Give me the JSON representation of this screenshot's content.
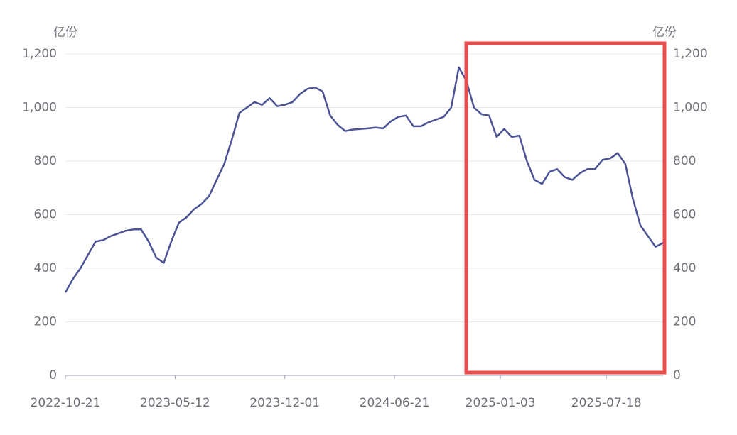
{
  "chart_data": {
    "type": "line",
    "y_label": "亿份",
    "y2_label": "亿份",
    "x": [
      "2022-10-21",
      "2022-11-04",
      "2022-11-18",
      "2022-12-02",
      "2022-12-16",
      "2022-12-30",
      "2023-01-13",
      "2023-01-27",
      "2023-02-10",
      "2023-02-24",
      "2023-03-10",
      "2023-03-24",
      "2023-04-07",
      "2023-04-21",
      "2023-05-05",
      "2023-05-19",
      "2023-06-02",
      "2023-06-16",
      "2023-06-30",
      "2023-07-14",
      "2023-07-28",
      "2023-08-11",
      "2023-08-25",
      "2023-09-08",
      "2023-09-22",
      "2023-10-06",
      "2023-10-20",
      "2023-11-03",
      "2023-11-17",
      "2023-12-01",
      "2023-12-15",
      "2023-12-29",
      "2024-01-12",
      "2024-01-26",
      "2024-02-09",
      "2024-02-23",
      "2024-03-08",
      "2024-03-22",
      "2024-04-05",
      "2024-04-19",
      "2024-05-03",
      "2024-05-17",
      "2024-05-31",
      "2024-06-14",
      "2024-06-28",
      "2024-07-12",
      "2024-07-26",
      "2024-08-09",
      "2024-08-23",
      "2024-09-06",
      "2024-09-20",
      "2024-10-04",
      "2024-10-18",
      "2024-11-01",
      "2024-11-15",
      "2024-11-29",
      "2024-12-13",
      "2024-12-27",
      "2025-01-10",
      "2025-01-24",
      "2025-02-07",
      "2025-02-21",
      "2025-03-07",
      "2025-03-21",
      "2025-04-04",
      "2025-04-18",
      "2025-05-02",
      "2025-05-16",
      "2025-05-30",
      "2025-06-13",
      "2025-06-27",
      "2025-07-11",
      "2025-07-25",
      "2025-08-08",
      "2025-08-22",
      "2025-09-05",
      "2025-09-19",
      "2025-10-03",
      "2025-10-17",
      "2025-10-31"
    ],
    "series": [
      {
        "color": "#4b5394",
        "values": [
          310,
          360,
          400,
          450,
          500,
          505,
          520,
          530,
          540,
          545,
          545,
          500,
          440,
          420,
          500,
          570,
          590,
          620,
          640,
          670,
          730,
          790,
          880,
          980,
          1000,
          1020,
          1010,
          1035,
          1005,
          1010,
          1020,
          1050,
          1070,
          1075,
          1060,
          970,
          935,
          912,
          918,
          920,
          922,
          925,
          922,
          948,
          965,
          970,
          930,
          930,
          945,
          955,
          965,
          1000,
          1150,
          1100,
          1000,
          975,
          970,
          890,
          920,
          890,
          895,
          800,
          730,
          715,
          760,
          770,
          740,
          730,
          755,
          770,
          770,
          805,
          810,
          830,
          790,
          660,
          560,
          520,
          480,
          495
        ]
      }
    ],
    "xlim": [
      "2022-10-21",
      "2025-10-31"
    ],
    "xticks": [
      "2022-10-21",
      "2023-05-12",
      "2023-12-01",
      "2024-06-21",
      "2025-01-03",
      "2025-07-18"
    ],
    "ylim": [
      0,
      1200
    ],
    "y2lim": [
      0,
      1200
    ],
    "yticks": [
      0,
      200,
      400,
      600,
      800,
      {
        "value": 1000,
        "label": "1,000"
      },
      {
        "value": 1200,
        "label": "1,200"
      }
    ],
    "y2ticks": [
      0,
      200,
      400,
      600,
      800,
      {
        "value": 1000,
        "label": "1,000"
      },
      {
        "value": 1200,
        "label": "1,200"
      }
    ],
    "grid": true
  }
}
